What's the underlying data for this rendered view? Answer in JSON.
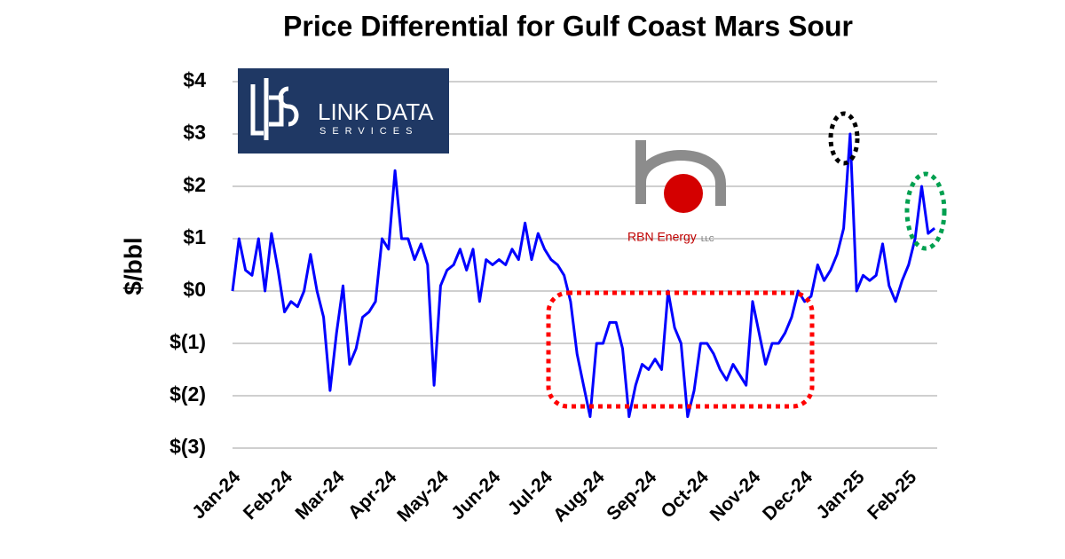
{
  "chart_data": {
    "type": "line",
    "title": "Price Differential for Gulf Coast Mars Sour",
    "y_label": "$/bbl",
    "logos": {
      "link_data": "LINK DATA",
      "link_services": "SERVICES",
      "rbn": "RBN Energy",
      "rbn_suffix": "LLC"
    },
    "categories": [
      "Jan-24",
      null,
      null,
      null,
      null,
      null,
      null,
      null,
      "Feb-24",
      null,
      null,
      null,
      null,
      null,
      null,
      null,
      "Mar-24",
      null,
      null,
      null,
      null,
      null,
      null,
      null,
      "Apr-24",
      null,
      null,
      null,
      null,
      null,
      null,
      null,
      "May-24",
      null,
      null,
      null,
      null,
      null,
      null,
      null,
      "Jun-24",
      null,
      null,
      null,
      null,
      null,
      null,
      null,
      "Jul-24",
      null,
      null,
      null,
      null,
      null,
      null,
      null,
      "Aug-24",
      null,
      null,
      null,
      null,
      null,
      null,
      null,
      "Sep-24",
      null,
      null,
      null,
      null,
      null,
      null,
      null,
      "Oct-24",
      null,
      null,
      null,
      null,
      null,
      null,
      null,
      "Nov-24",
      null,
      null,
      null,
      null,
      null,
      null,
      null,
      "Dec-24",
      null,
      null,
      null,
      null,
      null,
      null,
      null,
      "Jan-25",
      null,
      null,
      null,
      null,
      null,
      null,
      null,
      "Feb-25",
      null,
      null,
      null,
      null
    ],
    "series": [
      {
        "color": "#0000ff",
        "values": [
          0,
          1.0,
          0.4,
          0.3,
          1.0,
          0.0,
          1.1,
          0.4,
          -0.4,
          -0.2,
          -0.3,
          0.0,
          0.7,
          0.0,
          -0.5,
          -1.9,
          -0.8,
          0.1,
          -1.4,
          -1.1,
          -0.5,
          -0.4,
          -0.2,
          1.0,
          0.8,
          2.3,
          1.0,
          1.0,
          0.6,
          0.9,
          0.5,
          -1.8,
          0.1,
          0.4,
          0.5,
          0.8,
          0.4,
          0.8,
          -0.2,
          0.6,
          0.5,
          0.6,
          0.5,
          0.8,
          0.6,
          1.3,
          0.6,
          1.1,
          0.8,
          0.6,
          0.5,
          0.3,
          -0.2,
          -1.2,
          -1.8,
          -2.4,
          -1.0,
          -1.0,
          -0.6,
          -0.6,
          -1.1,
          -2.4,
          -1.8,
          -1.4,
          -1.5,
          -1.3,
          -1.5,
          0.0,
          -0.7,
          -1.0,
          -2.4,
          -1.9,
          -1.0,
          -1.0,
          -1.2,
          -1.5,
          -1.7,
          -1.4,
          -1.6,
          -1.8,
          -0.2,
          -0.8,
          -1.4,
          -1.0,
          -1.0,
          -0.8,
          -0.5,
          0.0,
          -0.2,
          -0.1,
          0.5,
          0.2,
          0.4,
          0.7,
          1.2,
          3.0,
          0.0,
          0.3,
          0.2,
          0.3,
          0.9,
          0.1,
          -0.2,
          0.2,
          0.5,
          1.0,
          2.0,
          1.1,
          1.2
        ]
      }
    ],
    "ylim": [
      -3,
      4
    ],
    "yticks": [
      {
        "value": 4,
        "label": "$4"
      },
      {
        "value": 3,
        "label": "$3"
      },
      {
        "value": 2,
        "label": "$2"
      },
      {
        "value": 1,
        "label": "$1"
      },
      {
        "value": 0,
        "label": "$0"
      },
      {
        "value": -1,
        "label": "$(1)"
      },
      {
        "value": -2,
        "label": "$(2)"
      },
      {
        "value": -3,
        "label": "$(3)"
      }
    ],
    "grid": true
  }
}
